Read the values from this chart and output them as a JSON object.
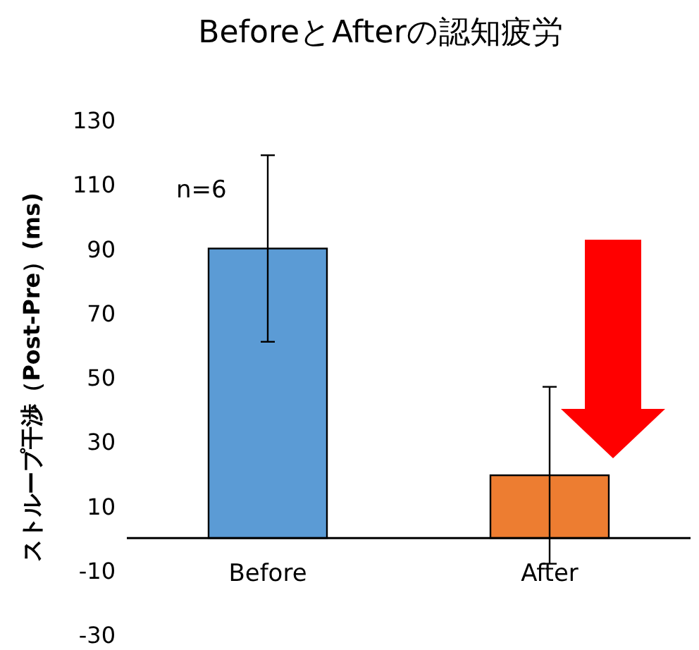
{
  "chart_data": {
    "type": "bar",
    "title": "BeforeとAfterの認知疲労",
    "ylabel": "ストループ干渉（Post-Pre）(ms)",
    "categories": [
      "Before",
      "After"
    ],
    "values": [
      90,
      19.5
    ],
    "errors": [
      29,
      27.5
    ],
    "colors": [
      "#5b9bd5",
      "#ed7d31"
    ],
    "ylim": [
      -30,
      130
    ],
    "yticks": [
      -30,
      -10,
      10,
      30,
      50,
      70,
      90,
      110,
      130
    ],
    "grid": false,
    "annotations": [
      "n=6"
    ]
  }
}
